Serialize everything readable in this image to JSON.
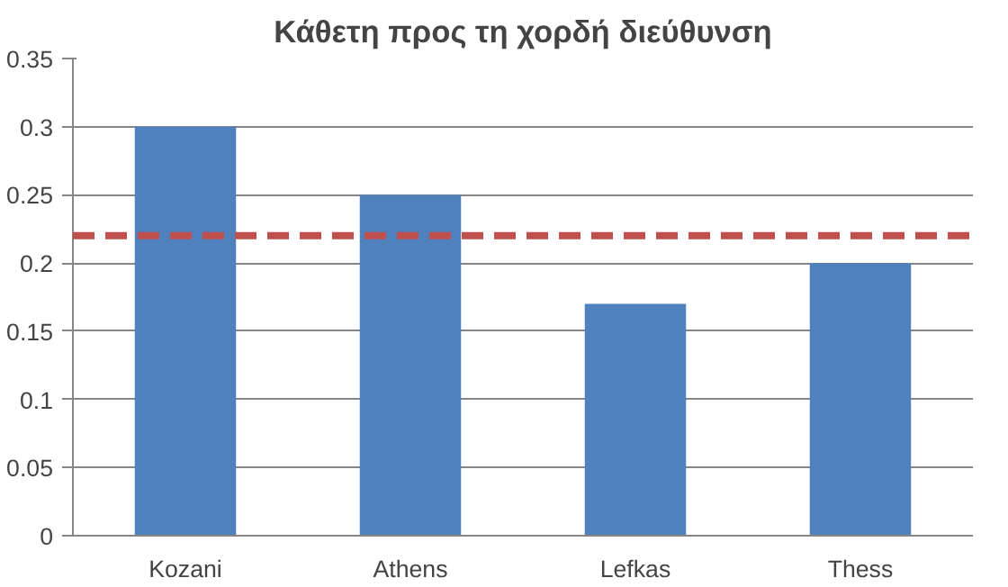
{
  "chart_data": {
    "type": "bar",
    "title": "Κάθετη προς τη χορδή διεύθυνση",
    "categories": [
      "Kozani",
      "Athens",
      "Lefkas",
      "Thess"
    ],
    "values": [
      0.3,
      0.25,
      0.17,
      0.2
    ],
    "color": "#4f81bd",
    "ylim": [
      0,
      0.35
    ],
    "yticks": [
      0,
      0.05,
      0.1,
      0.15,
      0.2,
      0.25,
      0.3,
      0.35
    ],
    "grid": "y",
    "ref_lines": [
      {
        "axis": "y",
        "value": 0.22,
        "color": "#c0504d",
        "line_style": "dashed"
      }
    ]
  }
}
